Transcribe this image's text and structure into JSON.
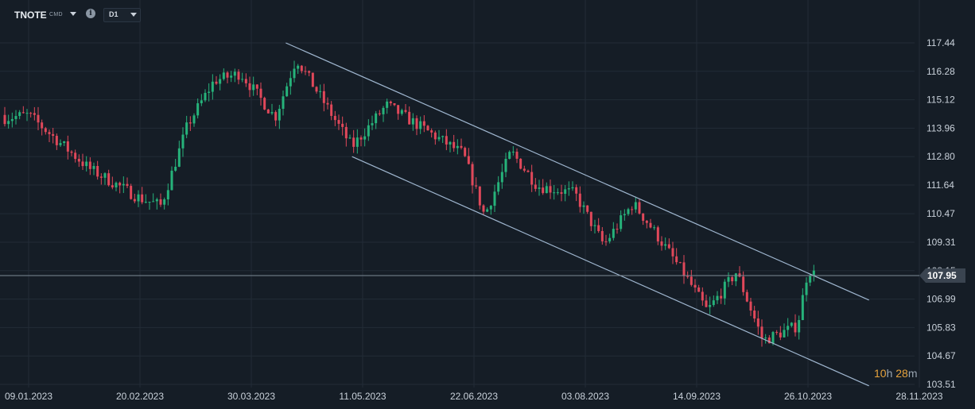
{
  "toolbar": {
    "symbol": "TNOTE",
    "symbol_type": "CMD",
    "info_icon": "info-icon",
    "timeframe": "D1"
  },
  "countdown": {
    "hours": "10",
    "h_unit": "h",
    "minutes": "28",
    "m_unit": "m"
  },
  "chart_data": {
    "type": "candlestick",
    "y_ticks": [
      "117.44",
      "116.28",
      "115.12",
      "113.96",
      "112.80",
      "111.64",
      "110.47",
      "109.31",
      "108.15",
      "106.99",
      "105.83",
      "104.67",
      "103.51"
    ],
    "ylim": [
      103.51,
      117.44
    ],
    "x_ticks": [
      "09.01.2023",
      "20.02.2023",
      "30.03.2023",
      "11.05.2023",
      "22.06.2023",
      "03.08.2023",
      "14.09.2023",
      "26.10.2023",
      "28.11.2023"
    ],
    "current_price": "107.95",
    "colors": {
      "up": "#26b27a",
      "down": "#e0485a",
      "channel": "#9fb6cf",
      "price_line": "#7d8a96",
      "grid": "#222c37"
    },
    "channel": [
      {
        "name": "upper",
        "from": [
          "2023-04-16",
          117.44
        ],
        "to": [
          "2023-11-22",
          106.95
        ]
      },
      {
        "name": "lower",
        "from": [
          "2023-05-11",
          112.8
        ],
        "to": [
          "2023-11-22",
          103.45
        ]
      }
    ],
    "key_closes": [
      {
        "date": "2023-01-09",
        "close": 114.5
      },
      {
        "date": "2023-02-01",
        "close": 112.3
      },
      {
        "date": "2023-02-20",
        "close": 111.1
      },
      {
        "date": "2023-02-28",
        "close": 110.8
      },
      {
        "date": "2023-03-10",
        "close": 114.1
      },
      {
        "date": "2023-03-20",
        "close": 115.9
      },
      {
        "date": "2023-03-30",
        "close": 116.2
      },
      {
        "date": "2023-04-12",
        "close": 114.4
      },
      {
        "date": "2023-04-20",
        "close": 116.8
      },
      {
        "date": "2023-05-11",
        "close": 113.2
      },
      {
        "date": "2023-05-24",
        "close": 114.9
      },
      {
        "date": "2023-06-22",
        "close": 112.9
      },
      {
        "date": "2023-06-30",
        "close": 110.4
      },
      {
        "date": "2023-07-10",
        "close": 113.0
      },
      {
        "date": "2023-07-20",
        "close": 111.6
      },
      {
        "date": "2023-08-03",
        "close": 111.3
      },
      {
        "date": "2023-08-14",
        "close": 109.2
      },
      {
        "date": "2023-08-25",
        "close": 110.9
      },
      {
        "date": "2023-09-01",
        "close": 109.9
      },
      {
        "date": "2023-09-14",
        "close": 107.9
      },
      {
        "date": "2023-09-22",
        "close": 106.5
      },
      {
        "date": "2023-10-03",
        "close": 108.1
      },
      {
        "date": "2023-10-13",
        "close": 105.3
      },
      {
        "date": "2023-10-26",
        "close": 105.9
      },
      {
        "date": "2023-10-30",
        "close": 108.2
      },
      {
        "date": "2023-11-02",
        "close": 107.95
      }
    ]
  }
}
